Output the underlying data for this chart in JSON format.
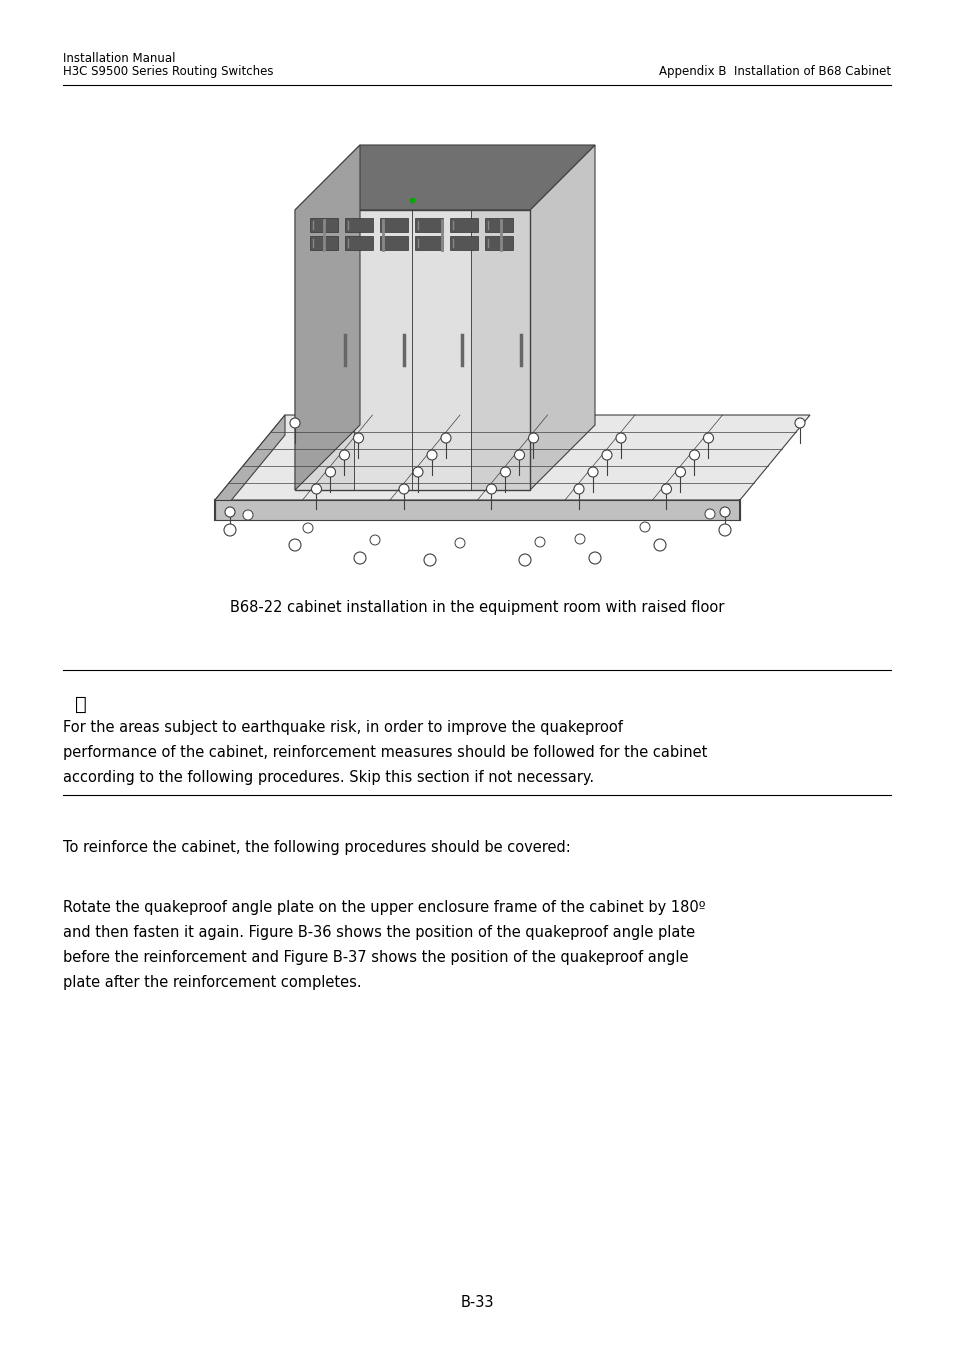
{
  "header_left_line1": "Installation Manual",
  "header_left_line2": "H3C S9500 Series Routing Switches",
  "header_right": "Appendix B  Installation of B68 Cabinet",
  "figure_caption": "B68-22 cabinet installation in the equipment room with raised floor",
  "note_text_line1": "For the areas subject to earthquake risk, in order to improve the quakeproof",
  "note_text_line2": "performance of the cabinet, reinforcement measures should be followed for the cabinet",
  "note_text_line3": "according to the following procedures. Skip this section if not necessary.",
  "body_text1": "To reinforce the cabinet, the following procedures should be covered:",
  "body_text2_line1": "Rotate the quakeproof angle plate on the upper enclosure frame of the cabinet by 180º",
  "body_text2_line2": "and then fasten it again. Figure B-36 shows the position of the quakeproof angle plate",
  "body_text2_line3": "before the reinforcement and Figure B-37 shows the position of the quakeproof angle",
  "body_text2_line4": "plate after the reinforcement completes.",
  "page_number": "B-33",
  "bg_color": "#ffffff",
  "text_color": "#000000",
  "line_color": "#000000",
  "header_line_color": "#000000",
  "note_line_color": "#000000"
}
